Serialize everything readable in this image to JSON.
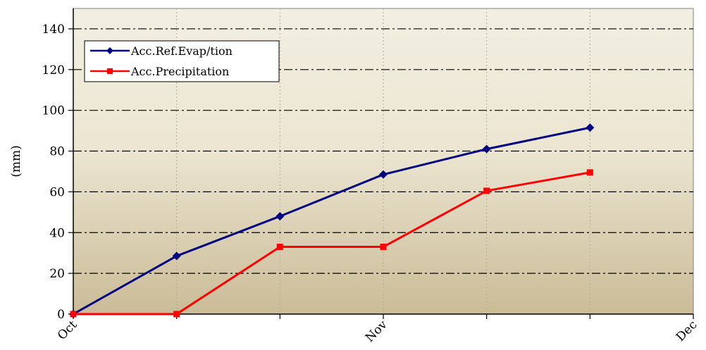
{
  "chart_data": {
    "type": "line",
    "title": "",
    "xlabel": "",
    "ylabel": "(mm)",
    "ylim": [
      0,
      150
    ],
    "yticks": [
      0,
      20,
      40,
      60,
      80,
      100,
      120,
      140
    ],
    "x_tick_labels": [
      "Oct",
      "Nov",
      "Dec"
    ],
    "x_tick_positions": [
      0,
      3,
      6
    ],
    "x_range": [
      0,
      6
    ],
    "grid": {
      "horizontal": "dash-dot",
      "vertical": "dotted"
    },
    "legend_position": "top-left",
    "series": [
      {
        "name": "Acc.Ref.Evap/tion",
        "color": "#000080",
        "marker": "diamond",
        "x": [
          0,
          1,
          2,
          3,
          4,
          5
        ],
        "values": [
          0,
          28.5,
          48,
          68.5,
          81,
          91.5
        ]
      },
      {
        "name": "Acc.Precipitation",
        "color": "#ff0000",
        "marker": "square",
        "x": [
          0,
          1,
          2,
          3,
          4,
          5
        ],
        "values": [
          0,
          0,
          33,
          33,
          60.5,
          69.5
        ]
      }
    ],
    "background_gradient": [
      "#f2efe2",
      "#cbbc98"
    ]
  }
}
